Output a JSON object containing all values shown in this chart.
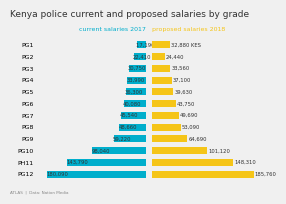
{
  "title": "Kenya police current and proposed salaries by grade",
  "grades": [
    "PG1",
    "PG2",
    "PG3",
    "PG4",
    "PG5",
    "PG6",
    "PG7",
    "PG8",
    "PG9",
    "PG10",
    "PH11",
    "PG12"
  ],
  "current_2017": [
    17190,
    22410,
    30750,
    33990,
    36300,
    40080,
    45540,
    48660,
    59220,
    98040,
    143790,
    180090
  ],
  "proposed_2018": [
    32880,
    24440,
    33560,
    37100,
    39630,
    43750,
    49690,
    53090,
    64690,
    101120,
    148310,
    185760
  ],
  "current_labels": [
    "17,190 KES",
    "22,410",
    "30,750",
    "33,990",
    "36,300",
    "40,080",
    "45,540",
    "48,660",
    "59,220",
    "98,040",
    "143,790",
    "180,090"
  ],
  "proposed_labels": [
    "32,880 KES",
    "24,440",
    "33,560",
    "37,100",
    "39,630",
    "43,750",
    "49,690",
    "53,090",
    "64,690",
    "101,120",
    "148,310",
    "185,760"
  ],
  "current_label": "current salaries 2017",
  "proposed_label": "proposed salaries 2018",
  "current_color": "#00AECC",
  "proposed_color": "#F5C518",
  "background_color": "#f0f0f0",
  "title_fontsize": 6.5,
  "label_fontsize": 4.5,
  "grade_fontsize": 4.5,
  "value_fontsize": 3.8,
  "footer": "ATLAS  |  Data: Nation Media"
}
